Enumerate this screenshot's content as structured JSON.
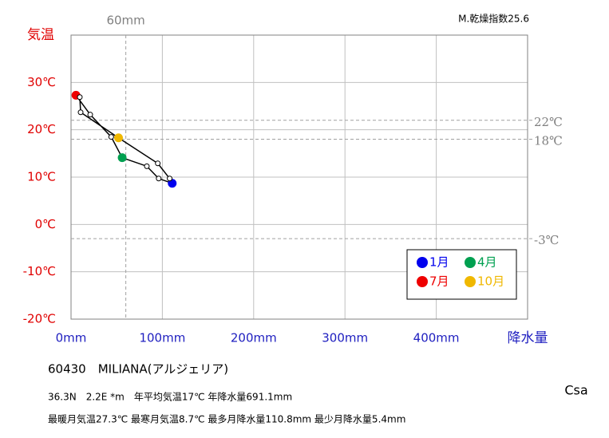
{
  "chart_data": {
    "type": "line",
    "y_axis_label": "気温",
    "x_axis_label": "降水量",
    "dryness_index": "M.乾燥指数25.6",
    "xlim": [
      0,
      500
    ],
    "xticks": [
      {
        "value": 0,
        "label": "0mm"
      },
      {
        "value": 100,
        "label": "100mm"
      },
      {
        "value": 200,
        "label": "200mm"
      },
      {
        "value": 300,
        "label": "300mm"
      },
      {
        "value": 400,
        "label": "400mm"
      },
      {
        "value": 500,
        "label": ""
      }
    ],
    "ylim": [
      -20,
      40
    ],
    "yticks": [
      {
        "value": -20,
        "label": "-20℃"
      },
      {
        "value": -10,
        "label": "-10℃"
      },
      {
        "value": 0,
        "label": "0℃"
      },
      {
        "value": 10,
        "label": "10℃"
      },
      {
        "value": 20,
        "label": "20℃"
      },
      {
        "value": 30,
        "label": "30℃"
      },
      {
        "value": 40,
        "label": ""
      }
    ],
    "grid": true,
    "x": [
      110.8,
      96,
      83,
      56,
      44,
      21,
      5.4,
      9.6,
      10.5,
      52,
      95,
      108
    ],
    "values": [
      8.7,
      9.7,
      12.3,
      14.1,
      18.5,
      23.2,
      27.3,
      26.9,
      23.7,
      18.3,
      12.9,
      9.7
    ],
    "line_color": "#000000",
    "highlights": [
      {
        "name": "1月",
        "color": "#0000ee",
        "index": 0
      },
      {
        "name": "4月",
        "color": "#00a050",
        "index": 3
      },
      {
        "name": "7月",
        "color": "#ee0000",
        "index": 6
      },
      {
        "name": "10月",
        "color": "#f0b800",
        "index": 9
      }
    ],
    "ref_lines_x": [
      {
        "value": 60,
        "label": "60mm"
      }
    ],
    "ref_lines_y": [
      {
        "value": 22,
        "label": "22℃"
      },
      {
        "value": 18,
        "label": "18℃"
      },
      {
        "value": -3,
        "label": "-3℃"
      }
    ],
    "station": "60430　MILIANA(アルジェリア)",
    "info_line1": "36.3N　2.2E *m　年平均気温17℃ 年降水量691.1mm",
    "info_line2": "最暖月気温27.3℃ 最寒月気温8.7℃ 最多月降水量110.8mm 最少月降水量5.4mm",
    "climate_class": "Csa"
  }
}
